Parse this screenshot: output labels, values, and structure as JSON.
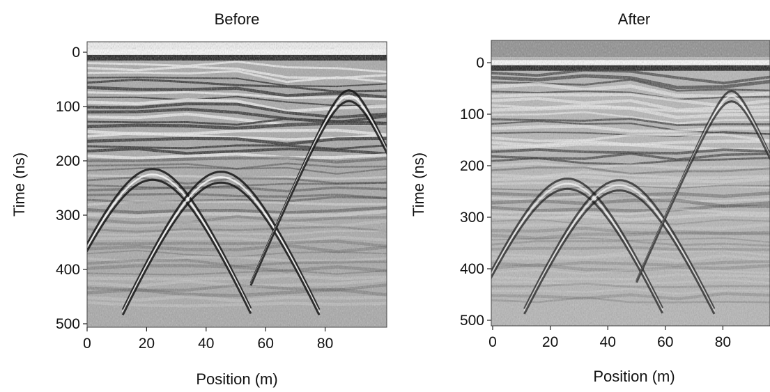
{
  "chart_data": [
    {
      "type": "heatmap",
      "title": "Before",
      "xlabel": "Position (m)",
      "ylabel": "Time (ns)",
      "xlim": [
        0,
        100
      ],
      "ylim": [
        500,
        0
      ],
      "xticks": [
        "0",
        "20",
        "40",
        "60",
        "80"
      ],
      "yticks": [
        "0",
        "100",
        "200",
        "300",
        "400",
        "500"
      ],
      "hyperbolas": [
        {
          "apex_x": 22,
          "apex_t": 215
        },
        {
          "apex_x": 45,
          "apex_t": 220
        },
        {
          "apex_x": 88,
          "apex_t": 70
        }
      ],
      "colormap": "grayscale"
    },
    {
      "type": "heatmap",
      "title": "After",
      "xlabel": "Position (m)",
      "ylabel": "Time (ns)",
      "xlim": [
        0,
        100
      ],
      "ylim": [
        500,
        0
      ],
      "xticks": [
        "0",
        "20",
        "40",
        "60",
        "80"
      ],
      "yticks": [
        "0",
        "100",
        "200",
        "300",
        "400",
        "500"
      ],
      "hyperbolas": [
        {
          "apex_x": 26,
          "apex_t": 225
        },
        {
          "apex_x": 44,
          "apex_t": 228
        },
        {
          "apex_x": 83,
          "apex_t": 55
        }
      ],
      "colormap": "grayscale"
    }
  ]
}
